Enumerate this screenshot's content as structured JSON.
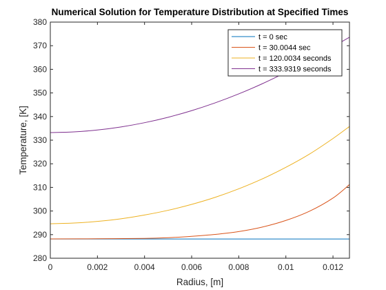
{
  "chart_data": {
    "type": "line",
    "title": "Numerical Solution for Temperature Distribution at Specified Times",
    "xlabel": "Radius, [m]",
    "ylabel": "Temperature, [K]",
    "xlim": [
      0,
      0.0127
    ],
    "ylim": [
      280,
      380
    ],
    "xticks": [
      0,
      0.002,
      0.004,
      0.006,
      0.008,
      0.01,
      0.012
    ],
    "xtick_labels": [
      "0",
      "0.002",
      "0.004",
      "0.006",
      "0.008",
      "0.01",
      "0.012"
    ],
    "yticks": [
      280,
      290,
      300,
      310,
      320,
      330,
      340,
      350,
      360,
      370,
      380
    ],
    "ytick_labels": [
      "280",
      "290",
      "300",
      "310",
      "320",
      "330",
      "340",
      "350",
      "360",
      "370",
      "380"
    ],
    "grid": false,
    "legend_position": "top-right",
    "series": [
      {
        "name": "t = 0 sec",
        "color": "#0072BD",
        "x": [
          0,
          0.002,
          0.004,
          0.006,
          0.008,
          0.01,
          0.012,
          0.0127
        ],
        "y": [
          288.15,
          288.15,
          288.15,
          288.15,
          288.15,
          288.15,
          288.15,
          288.15
        ]
      },
      {
        "name": "t = 30.0044 sec",
        "color": "#D95319",
        "x": [
          0,
          0.002,
          0.004,
          0.005,
          0.006,
          0.007,
          0.008,
          0.009,
          0.01,
          0.011,
          0.012,
          0.0127
        ],
        "y": [
          288.2,
          288.25,
          288.4,
          288.7,
          289.3,
          290.1,
          291.3,
          293.2,
          296.0,
          299.9,
          305.5,
          311.2
        ]
      },
      {
        "name": "t = 120.0034 seconds",
        "color": "#EDB120",
        "x": [
          0,
          0.001,
          0.002,
          0.003,
          0.004,
          0.005,
          0.006,
          0.007,
          0.008,
          0.009,
          0.01,
          0.011,
          0.012,
          0.0127
        ],
        "y": [
          294.6,
          294.9,
          295.6,
          296.7,
          298.3,
          300.3,
          302.8,
          305.8,
          309.4,
          313.6,
          318.5,
          324.1,
          330.7,
          335.8
        ]
      },
      {
        "name": "t = 333.9319 seconds",
        "color": "#7E2F8E",
        "x": [
          0,
          0.001,
          0.002,
          0.003,
          0.004,
          0.005,
          0.006,
          0.007,
          0.008,
          0.009,
          0.01,
          0.011,
          0.012,
          0.0127
        ],
        "y": [
          333.2,
          333.5,
          334.3,
          335.6,
          337.4,
          339.7,
          342.5,
          345.8,
          349.6,
          353.9,
          358.7,
          363.9,
          369.6,
          373.6
        ]
      }
    ]
  }
}
